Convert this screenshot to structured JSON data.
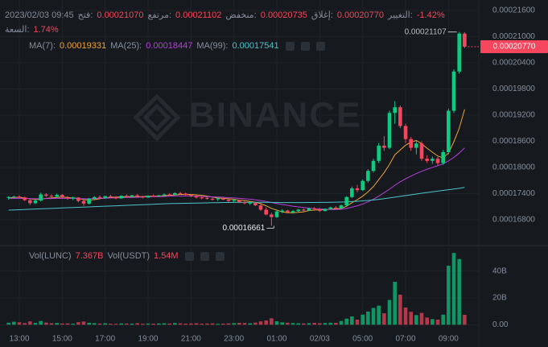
{
  "legend": {
    "datetime": "2023/02/03 09:45",
    "items": [
      {
        "label": "فتح:",
        "value": "0.00021070"
      },
      {
        "label": "مرتفع:",
        "value": "0.00021102"
      },
      {
        "label": "منخفض:",
        "value": "0.00020735"
      },
      {
        "label": "إغلاق:",
        "value": "0.00020770"
      },
      {
        "label": "التغيير:",
        "value": "-1.42%"
      }
    ],
    "amplitude": {
      "label": "السعة:",
      "value": "1.74%"
    }
  },
  "chart_data": {
    "type": "candlestick",
    "watermark": "BINANCE",
    "up_color": "#0ecb81",
    "down_color": "#f6465d",
    "categories": [
      null,
      null,
      "13:00",
      null,
      null,
      null,
      null,
      null,
      null,
      null,
      "15:00",
      null,
      null,
      null,
      null,
      null,
      null,
      null,
      "17:00",
      null,
      null,
      null,
      null,
      null,
      null,
      null,
      "19:00",
      null,
      null,
      null,
      null,
      null,
      null,
      null,
      "21:00",
      null,
      null,
      null,
      null,
      null,
      null,
      null,
      "23:00",
      null,
      null,
      null,
      null,
      null,
      null,
      null,
      "01:00",
      null,
      null,
      null,
      null,
      null,
      null,
      null,
      "02/03",
      null,
      null,
      null,
      null,
      null,
      null,
      null,
      "05:00",
      null,
      null,
      null,
      null,
      null,
      null,
      null,
      "07:00",
      null,
      null,
      null,
      null,
      null,
      null,
      null,
      "09:00",
      null,
      null,
      null
    ],
    "open": [
      0.000173,
      0.0001732,
      0.0001733,
      0.0001731,
      0.0001725,
      0.0001718,
      0.0001724,
      0.0001738,
      0.0001735,
      0.0001733,
      0.0001737,
      0.0001731,
      0.0001729,
      0.0001731,
      0.0001723,
      0.0001717,
      0.0001728,
      0.0001732,
      0.000173,
      0.0001734,
      0.0001732,
      0.0001729,
      0.0001735,
      0.0001733,
      0.0001736,
      0.0001734,
      0.0001731,
      0.0001735,
      0.0001734,
      0.0001736,
      0.0001738,
      0.0001737,
      0.0001741,
      0.000174,
      0.0001737,
      0.0001734,
      0.0001731,
      0.000173,
      0.0001728,
      0.0001727,
      0.0001729,
      0.0001726,
      0.0001723,
      0.0001725,
      0.000172,
      0.0001718,
      0.0001719,
      0.0001713,
      0.0001703,
      0.0001692,
      0.0001686,
      0.0001699,
      0.0001701,
      0.0001697,
      0.00017,
      0.0001703,
      0.0001701,
      0.0001706,
      0.0001704,
      0.00017,
      0.0001705,
      0.0001708,
      0.0001706,
      0.0001713,
      0.0001732,
      0.0001752,
      0.0001748,
      0.0001769,
      0.0001792,
      0.0001815,
      0.000185,
      0.0001845,
      0.0001925,
      0.0001938,
      0.0001895,
      0.0001865,
      0.0001845,
      0.0001855,
      0.000182,
      0.0001815,
      0.000182,
      0.000181,
      0.0001835,
      0.000193,
      0.000202,
      0.0002107
    ],
    "high": [
      0.0001734,
      0.0001735,
      0.0001736,
      0.0001733,
      0.0001729,
      0.0001726,
      0.0001742,
      0.0001741,
      0.0001738,
      0.000174,
      0.0001739,
      0.0001734,
      0.0001733,
      0.0001732,
      0.0001726,
      0.000173,
      0.0001734,
      0.0001736,
      0.0001735,
      0.0001737,
      0.0001734,
      0.0001736,
      0.0001738,
      0.0001737,
      0.0001739,
      0.0001735,
      0.0001736,
      0.0001738,
      0.0001737,
      0.000174,
      0.0001741,
      0.0001743,
      0.0001744,
      0.0001742,
      0.0001739,
      0.0001736,
      0.0001734,
      0.0001733,
      0.0001731,
      0.000173,
      0.0001731,
      0.0001728,
      0.0001727,
      0.0001726,
      0.0001723,
      0.0001721,
      0.000172,
      0.0001716,
      0.0001708,
      0.0001696,
      0.0001701,
      0.0001704,
      0.0001703,
      0.0001702,
      0.0001705,
      0.0001706,
      0.0001708,
      0.0001709,
      0.0001707,
      0.0001706,
      0.000171,
      0.0001711,
      0.0001715,
      0.0001734,
      0.0001756,
      0.000176,
      0.0001772,
      0.0001796,
      0.000182,
      0.0001856,
      0.0001872,
      0.000193,
      0.0001952,
      0.0001942,
      0.00019,
      0.000187,
      0.0001862,
      0.000186,
      0.0001828,
      0.0001825,
      0.0001824,
      0.000184,
      0.0001935,
      0.0002025,
      0.00021107,
      0.00021102
    ],
    "low": [
      0.0001726,
      0.0001729,
      0.000173,
      0.0001723,
      0.0001714,
      0.0001716,
      0.0001722,
      0.0001732,
      0.000173,
      0.0001731,
      0.0001729,
      0.0001726,
      0.0001725,
      0.000172,
      0.0001712,
      0.0001715,
      0.0001726,
      0.0001729,
      0.0001728,
      0.0001731,
      0.0001727,
      0.0001728,
      0.0001732,
      0.0001731,
      0.0001733,
      0.0001729,
      0.000173,
      0.0001733,
      0.0001732,
      0.0001734,
      0.0001735,
      0.0001736,
      0.0001738,
      0.0001735,
      0.0001732,
      0.0001729,
      0.0001727,
      0.0001726,
      0.0001724,
      0.0001723,
      0.0001725,
      0.0001721,
      0.000172,
      0.0001718,
      0.0001715,
      0.0001714,
      0.0001711,
      0.00017,
      0.000169,
      0.00016661,
      0.0001684,
      0.0001695,
      0.0001695,
      0.0001694,
      0.0001698,
      0.0001699,
      0.00017,
      0.0001702,
      0.0001698,
      0.0001699,
      0.0001703,
      0.0001705,
      0.0001705,
      0.0001711,
      0.000173,
      0.0001743,
      0.0001746,
      0.0001765,
      0.0001788,
      0.000181,
      0.0001838,
      0.0001842,
      0.00019,
      0.000189,
      0.0001856,
      0.0001838,
      0.000183,
      0.0001815,
      0.000181,
      0.0001808,
      0.0001805,
      0.0001806,
      0.000183,
      0.0001925,
      0.0002015,
      0.00020735
    ],
    "close": [
      0.0001732,
      0.0001733,
      0.0001731,
      0.0001725,
      0.0001718,
      0.0001724,
      0.0001738,
      0.0001735,
      0.0001733,
      0.0001737,
      0.0001731,
      0.0001729,
      0.0001731,
      0.0001723,
      0.0001717,
      0.0001728,
      0.0001732,
      0.000173,
      0.0001734,
      0.0001732,
      0.0001729,
      0.0001735,
      0.0001733,
      0.0001736,
      0.0001734,
      0.0001731,
      0.0001735,
      0.0001734,
      0.0001736,
      0.0001738,
      0.0001737,
      0.0001741,
      0.000174,
      0.0001737,
      0.0001734,
      0.0001731,
      0.000173,
      0.0001728,
      0.0001727,
      0.0001729,
      0.0001726,
      0.0001723,
      0.0001725,
      0.000172,
      0.0001718,
      0.0001719,
      0.0001713,
      0.0001703,
      0.0001692,
      0.0001686,
      0.0001699,
      0.0001701,
      0.0001697,
      0.00017,
      0.0001703,
      0.0001701,
      0.0001706,
      0.0001704,
      0.00017,
      0.0001705,
      0.0001708,
      0.0001706,
      0.0001713,
      0.0001732,
      0.0001752,
      0.0001748,
      0.0001769,
      0.0001792,
      0.0001815,
      0.000185,
      0.0001845,
      0.0001925,
      0.0001938,
      0.0001895,
      0.0001865,
      0.0001845,
      0.0001855,
      0.000182,
      0.0001815,
      0.000182,
      0.000181,
      0.0001835,
      0.000193,
      0.000202,
      0.0002107,
      0.0002077
    ],
    "ylim": [
      0.000163,
      0.0002184
    ],
    "yticks": [
      {
        "value": 0.000168,
        "label": "0.00016800"
      },
      {
        "value": 0.000174,
        "label": "0.00017400"
      },
      {
        "value": 0.00018,
        "label": "0.00018000"
      },
      {
        "value": 0.000186,
        "label": "0.00018600"
      },
      {
        "value": 0.000192,
        "label": "0.00019200"
      },
      {
        "value": 0.000198,
        "label": "0.00019800"
      },
      {
        "value": 0.000204,
        "label": "0.00020400"
      },
      {
        "value": 0.00021,
        "label": "0.00021000"
      },
      {
        "value": 0.000216,
        "label": "0.00021600"
      }
    ],
    "grid": true,
    "high_label": "0.00021107",
    "low_label": "0.00016661",
    "last_price": {
      "value": 0.0002077,
      "label": "0.00020770"
    },
    "series": [
      {
        "name": "MA(7):",
        "color": "#e8a33a",
        "value_label": "0.00019331",
        "values": [
          0.000173,
          0.0001731,
          0.00017315,
          0.000173,
          0.0001728,
          0.00017265,
          0.0001727,
          0.0001729,
          0.000173,
          0.0001731,
          0.0001732,
          0.0001731,
          0.000173,
          0.0001729,
          0.0001726,
          0.0001725,
          0.0001726,
          0.0001728,
          0.000173,
          0.0001731,
          0.0001732,
          0.0001732,
          0.0001733,
          0.0001733,
          0.0001733,
          0.0001733,
          0.0001734,
          0.0001734,
          0.0001734,
          0.0001735,
          0.0001736,
          0.0001737,
          0.0001738,
          0.0001738,
          0.0001738,
          0.0001737,
          0.0001736,
          0.0001734,
          0.0001732,
          0.000173,
          0.0001729,
          0.0001728,
          0.0001727,
          0.0001725,
          0.0001724,
          0.0001722,
          0.000172,
          0.0001717,
          0.0001712,
          0.0001706,
          0.0001702,
          0.0001698,
          0.0001696,
          0.0001696,
          0.0001697,
          0.0001698,
          0.0001701,
          0.0001702,
          0.0001703,
          0.0001703,
          0.0001704,
          0.0001705,
          0.0001706,
          0.0001711,
          0.0001719,
          0.0001726,
          0.0001734,
          0.0001744,
          0.0001756,
          0.0001772,
          0.0001788,
          0.0001807,
          0.0001829,
          0.000184,
          0.0001851,
          0.0001858,
          0.0001862,
          0.0001854,
          0.0001844,
          0.0001835,
          0.0001826,
          0.0001822,
          0.0001833,
          0.0001859,
          0.000189,
          0.00019331
        ]
      },
      {
        "name": "MA(25):",
        "color": "#b63fd9",
        "value_label": "0.00018447",
        "values": [
          0.0001729,
          0.0001729,
          0.0001729,
          0.0001729,
          0.00017285,
          0.0001728,
          0.0001728,
          0.00017285,
          0.00017285,
          0.0001729,
          0.0001729,
          0.0001729,
          0.0001729,
          0.00017285,
          0.0001728,
          0.0001728,
          0.00017285,
          0.0001729,
          0.00017295,
          0.000173,
          0.000173,
          0.00017305,
          0.0001731,
          0.0001731,
          0.00017315,
          0.0001732,
          0.00017325,
          0.0001733,
          0.0001733,
          0.00017335,
          0.0001734,
          0.00017345,
          0.00017345,
          0.00017345,
          0.00017345,
          0.0001734,
          0.00017335,
          0.0001733,
          0.00017325,
          0.0001732,
          0.00017315,
          0.00017305,
          0.000173,
          0.0001729,
          0.0001728,
          0.0001727,
          0.00017255,
          0.0001724,
          0.0001722,
          0.00017195,
          0.0001717,
          0.0001715,
          0.0001713,
          0.0001711,
          0.00017095,
          0.0001708,
          0.00017065,
          0.00017055,
          0.00017045,
          0.0001704,
          0.00017035,
          0.00017035,
          0.0001704,
          0.0001706,
          0.0001709,
          0.0001712,
          0.0001716,
          0.0001721,
          0.0001727,
          0.0001734,
          0.0001742,
          0.000175,
          0.0001759,
          0.0001767,
          0.0001774,
          0.000178,
          0.0001786,
          0.0001791,
          0.0001796,
          0.00018,
          0.0001804,
          0.0001808,
          0.0001815,
          0.0001823,
          0.0001833,
          0.00018447
        ]
      },
      {
        "name": "MA(99):",
        "color": "#4cc4cc",
        "value_label": "0.00017541",
        "values": [
          0.0001702,
          0.00017025,
          0.0001703,
          0.00017035,
          0.0001704,
          0.00017045,
          0.0001705,
          0.00017055,
          0.0001706,
          0.00017065,
          0.0001707,
          0.00017075,
          0.0001708,
          0.00017085,
          0.0001709,
          0.00017095,
          0.000171,
          0.00017105,
          0.0001711,
          0.00017115,
          0.0001712,
          0.00017125,
          0.0001713,
          0.00017135,
          0.0001714,
          0.00017145,
          0.0001715,
          0.00017155,
          0.0001716,
          0.00017165,
          0.0001717,
          0.00017172,
          0.00017175,
          0.00017178,
          0.0001718,
          0.00017182,
          0.00017185,
          0.00017187,
          0.0001719,
          0.00017192,
          0.00017195,
          0.00017196,
          0.00017197,
          0.00017198,
          0.00017199,
          0.000172,
          0.000172,
          0.000172,
          0.00017199,
          0.00017197,
          0.00017195,
          0.00017194,
          0.00017193,
          0.00017193,
          0.00017193,
          0.00017194,
          0.00017195,
          0.00017196,
          0.00017197,
          0.00017198,
          0.000172,
          0.00017202,
          0.00017205,
          0.0001721,
          0.00017216,
          0.00017224,
          0.00017232,
          0.00017242,
          0.00017254,
          0.00017268,
          0.00017284,
          0.000173,
          0.00017318,
          0.00017336,
          0.00017354,
          0.00017372,
          0.0001739,
          0.00017408,
          0.00017424,
          0.0001744,
          0.00017456,
          0.00017472,
          0.00017488,
          0.00017504,
          0.00017522,
          0.00017541
        ]
      }
    ],
    "volume": {
      "type": "bar",
      "name": "Vol(LUNC)",
      "value_label": "7.367B",
      "quote_name": "Vol(USDT)",
      "quote_label": "1.54M",
      "values": [
        1.5,
        2.2,
        1.8,
        1.2,
        2.5,
        1.4,
        2.8,
        1.6,
        1.1,
        1.3,
        0.9,
        1.0,
        0.8,
        1.9,
        2.4,
        1.5,
        1.2,
        0.9,
        1.1,
        0.8,
        0.7,
        1.0,
        0.9,
        0.8,
        1.2,
        0.7,
        0.9,
        0.8,
        1.0,
        1.1,
        0.9,
        1.3,
        1.0,
        0.8,
        0.9,
        1.1,
        0.8,
        0.9,
        1.0,
        0.7,
        0.8,
        1.0,
        1.2,
        1.4,
        1.3,
        1.1,
        1.6,
        2.5,
        3.2,
        4.8,
        2.6,
        1.8,
        1.5,
        1.3,
        1.1,
        1.0,
        1.2,
        1.4,
        1.1,
        1.3,
        1.5,
        1.4,
        2.8,
        4.5,
        6.2,
        3.8,
        7.5,
        9.8,
        12.5,
        14.2,
        8.5,
        18.5,
        32.0,
        22.4,
        12.8,
        9.6,
        7.2,
        8.8,
        5.4,
        4.2,
        3.8,
        7.5,
        44.0,
        53.5,
        49.0,
        7.367
      ],
      "ylim": [
        -4,
        56
      ],
      "yticks": [
        {
          "value": 0,
          "label": "0.00"
        },
        {
          "value": 20,
          "label": "20B"
        },
        {
          "value": 40,
          "label": "40B"
        }
      ]
    }
  }
}
